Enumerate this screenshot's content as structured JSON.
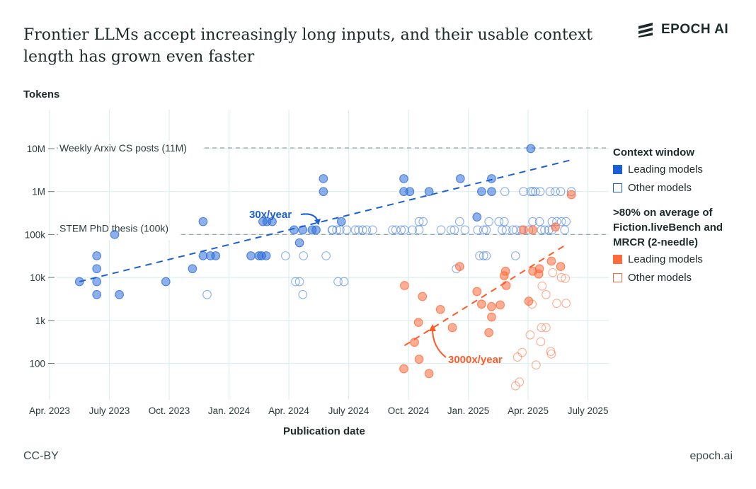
{
  "title": "Frontier LLMs accept increasingly long inputs, and their usable context length has grown even faster",
  "logo": {
    "text": "EPOCH AI"
  },
  "footer": {
    "license": "CC-BY",
    "site": "epoch.ai"
  },
  "colors": {
    "blue": "#2f6fd8",
    "orange": "#ff6b3d",
    "grid": "#dcefee",
    "ref": "#9aa6a6"
  },
  "legend": {
    "group1_title": "Context window",
    "group1_leading": "Leading models",
    "group1_other": "Other models",
    "group2_title_1": ">80% on average of",
    "group2_title_2": "Fiction.liveBench and",
    "group2_title_3": "MRCR (2-needle)",
    "group2_leading": "Leading models",
    "group2_other": "Other models"
  },
  "chart_data": {
    "type": "scatter",
    "xlabel": "Publication date",
    "ylabel": "Tokens",
    "yscale": "log",
    "ylim": [
      20,
      20000000
    ],
    "xlim": [
      "2023-03-18",
      "2025-07-30"
    ],
    "grid": true,
    "legend_position": "right",
    "x_ticks": [
      {
        "date": "2023-04-01",
        "label": "Apr. 2023"
      },
      {
        "date": "2023-07-01",
        "label": "July 2023"
      },
      {
        "date": "2023-10-01",
        "label": "Oct. 2023"
      },
      {
        "date": "2024-01-01",
        "label": "Jan. 2024"
      },
      {
        "date": "2024-04-01",
        "label": "Apr. 2024"
      },
      {
        "date": "2024-07-01",
        "label": "July 2024"
      },
      {
        "date": "2024-10-01",
        "label": "Oct. 2024"
      },
      {
        "date": "2025-01-01",
        "label": "Jan. 2025"
      },
      {
        "date": "2025-04-01",
        "label": "Apr. 2025"
      },
      {
        "date": "2025-07-01",
        "label": "July 2025"
      }
    ],
    "y_ticks": [
      {
        "value": 100,
        "label": "100"
      },
      {
        "value": 1000,
        "label": "1k"
      },
      {
        "value": 10000,
        "label": "10k"
      },
      {
        "value": 100000,
        "label": "100k"
      },
      {
        "value": 1000000,
        "label": "1M"
      },
      {
        "value": 10000000,
        "label": "10M"
      }
    ],
    "reference_lines": [
      {
        "value": 11000000,
        "label": "Weekly Arxiv CS posts (11M)"
      },
      {
        "value": 100000,
        "label": "STEM PhD thesis (100k)"
      }
    ],
    "trends": [
      {
        "label": "30x/year",
        "color": "blue",
        "from": [
          "2023-05-16",
          8000
        ],
        "to": [
          "2025-06-07",
          5500000
        ]
      },
      {
        "label": "3000x/year",
        "color": "orange",
        "from": [
          "2024-09-25",
          260
        ],
        "to": [
          "2025-05-28",
          58000
        ]
      }
    ],
    "series": [
      {
        "name": "Context window – Leading models",
        "color": "blue",
        "filled": true,
        "points": [
          [
            "2023-05-16",
            8000
          ],
          [
            "2023-06-12",
            32000
          ],
          [
            "2023-06-12",
            16000
          ],
          [
            "2023-06-12",
            8000
          ],
          [
            "2023-06-12",
            4000
          ],
          [
            "2023-07-09",
            100000
          ],
          [
            "2023-07-16",
            4000
          ],
          [
            "2023-09-26",
            8000
          ],
          [
            "2023-11-06",
            16000
          ],
          [
            "2023-11-22",
            200000
          ],
          [
            "2023-11-22",
            32000
          ],
          [
            "2023-12-03",
            32000
          ],
          [
            "2023-12-11",
            32000
          ],
          [
            "2024-02-04",
            32000
          ],
          [
            "2024-02-16",
            32000
          ],
          [
            "2024-02-20",
            32000
          ],
          [
            "2024-02-27",
            32000
          ],
          [
            "2024-02-22",
            200000
          ],
          [
            "2024-02-28",
            200000
          ],
          [
            "2024-03-06",
            200000
          ],
          [
            "2024-04-09",
            128000
          ],
          [
            "2024-04-17",
            64000
          ],
          [
            "2024-04-22",
            128000
          ],
          [
            "2024-05-06",
            128000
          ],
          [
            "2024-05-12",
            128000
          ],
          [
            "2024-05-23",
            2000000
          ],
          [
            "2024-05-23",
            1000000
          ],
          [
            "2024-06-20",
            200000
          ],
          [
            "2024-09-24",
            2000000
          ],
          [
            "2024-09-24",
            1000000
          ],
          [
            "2024-10-03",
            1000000
          ],
          [
            "2024-11-02",
            1000000
          ],
          [
            "2024-12-19",
            2000000
          ],
          [
            "2025-01-14",
            256000
          ],
          [
            "2025-01-21",
            1000000
          ],
          [
            "2025-02-06",
            1000000
          ],
          [
            "2025-02-06",
            2000000
          ],
          [
            "2025-04-05",
            10000000
          ]
        ]
      },
      {
        "name": "Context window – Other models",
        "color": "blue",
        "filled": false,
        "points": [
          [
            "2023-11-28",
            4000
          ],
          [
            "2024-03-26",
            32000
          ],
          [
            "2024-04-23",
            32000
          ],
          [
            "2024-05-27",
            32000
          ],
          [
            "2024-04-11",
            8000
          ],
          [
            "2024-04-17",
            8000
          ],
          [
            "2024-04-22",
            4000
          ],
          [
            "2024-06-06",
            128000
          ],
          [
            "2024-06-13",
            128000
          ],
          [
            "2024-06-15",
            8000
          ],
          [
            "2024-06-24",
            8000
          ],
          [
            "2024-06-07",
            128000
          ],
          [
            "2024-06-18",
            128000
          ],
          [
            "2024-06-28",
            128000
          ],
          [
            "2024-07-11",
            128000
          ],
          [
            "2024-07-16",
            128000
          ],
          [
            "2024-07-22",
            128000
          ],
          [
            "2024-07-28",
            128000
          ],
          [
            "2024-08-07",
            128000
          ],
          [
            "2024-09-07",
            128000
          ],
          [
            "2024-09-12",
            128000
          ],
          [
            "2024-09-20",
            128000
          ],
          [
            "2024-09-25",
            128000
          ],
          [
            "2024-10-07",
            128000
          ],
          [
            "2024-10-17",
            128000
          ],
          [
            "2024-11-20",
            128000
          ],
          [
            "2024-12-05",
            128000
          ],
          [
            "2024-12-10",
            128000
          ],
          [
            "2024-12-26",
            128000
          ],
          [
            "2025-01-15",
            128000
          ],
          [
            "2025-01-24",
            128000
          ],
          [
            "2025-01-28",
            128000
          ],
          [
            "2025-02-22",
            128000
          ],
          [
            "2025-02-28",
            128000
          ],
          [
            "2025-03-08",
            128000
          ],
          [
            "2025-03-13",
            128000
          ],
          [
            "2025-03-21",
            128000
          ],
          [
            "2025-04-02",
            128000
          ],
          [
            "2025-04-21",
            128000
          ],
          [
            "2025-04-26",
            128000
          ],
          [
            "2025-05-02",
            128000
          ],
          [
            "2025-05-07",
            128000
          ],
          [
            "2025-05-26",
            128000
          ],
          [
            "2024-10-17",
            200000
          ],
          [
            "2024-10-23",
            200000
          ],
          [
            "2024-12-18",
            200000
          ],
          [
            "2025-02-02",
            200000
          ],
          [
            "2025-02-17",
            200000
          ],
          [
            "2025-02-25",
            200000
          ],
          [
            "2025-04-08",
            200000
          ],
          [
            "2025-04-18",
            200000
          ],
          [
            "2025-05-07",
            200000
          ],
          [
            "2025-05-14",
            200000
          ],
          [
            "2025-05-21",
            200000
          ],
          [
            "2025-05-28",
            200000
          ],
          [
            "2025-02-26",
            1000000
          ],
          [
            "2025-03-24",
            1000000
          ],
          [
            "2025-04-05",
            1000000
          ],
          [
            "2025-04-08",
            1000000
          ],
          [
            "2025-04-12",
            1000000
          ],
          [
            "2025-04-19",
            1000000
          ],
          [
            "2025-05-04",
            1000000
          ],
          [
            "2025-05-12",
            1000000
          ],
          [
            "2025-05-20",
            1000000
          ],
          [
            "2025-06-06",
            1000000
          ],
          [
            "2025-01-18",
            32000
          ],
          [
            "2025-01-24",
            32000
          ],
          [
            "2025-01-28",
            32000
          ],
          [
            "2025-03-12",
            32000
          ],
          [
            "2024-12-13",
            16000
          ]
        ]
      },
      {
        "name": ">80% on Fiction.liveBench and MRCR – Leading models",
        "color": "orange",
        "filled": true,
        "points": [
          [
            "2024-12-18",
            18000
          ],
          [
            "2024-09-25",
            6500
          ],
          [
            "2024-10-22",
            3600
          ],
          [
            "2024-11-19",
            1800
          ],
          [
            "2024-10-16",
            900
          ],
          [
            "2024-12-07",
            680
          ],
          [
            "2024-10-10",
            310
          ],
          [
            "2024-10-17",
            125
          ],
          [
            "2024-09-24",
            75
          ],
          [
            "2024-11-02",
            58
          ],
          [
            "2025-01-14",
            4700
          ],
          [
            "2025-01-21",
            2400
          ],
          [
            "2025-02-06",
            2100
          ],
          [
            "2025-02-19",
            2300
          ],
          [
            "2025-02-06",
            1200
          ],
          [
            "2025-02-02",
            520
          ],
          [
            "2025-02-27",
            14000
          ],
          [
            "2025-02-25",
            11000
          ],
          [
            "2025-02-28",
            6500
          ],
          [
            "2025-04-02",
            2800
          ],
          [
            "2025-04-08",
            14000
          ],
          [
            "2025-04-18",
            16000
          ],
          [
            "2025-04-17",
            12000
          ],
          [
            "2025-05-06",
            24000
          ],
          [
            "2025-05-20",
            18000
          ],
          [
            "2025-03-24",
            128000
          ],
          [
            "2025-04-08",
            128000
          ],
          [
            "2025-05-12",
            150000
          ],
          [
            "2025-06-06",
            850000
          ]
        ]
      },
      {
        "name": ">80% on Fiction.liveBench and MRCR – Other models",
        "color": "orange",
        "filled": false,
        "points": [
          [
            "2025-05-08",
            13000
          ],
          [
            "2025-05-21",
            10000
          ],
          [
            "2025-05-27",
            9500
          ],
          [
            "2025-04-22",
            6300
          ],
          [
            "2025-04-28",
            4000
          ],
          [
            "2025-04-07",
            2400
          ],
          [
            "2025-05-14",
            2500
          ],
          [
            "2025-05-28",
            2500
          ],
          [
            "2025-04-21",
            680
          ],
          [
            "2025-04-28",
            680
          ],
          [
            "2025-04-04",
            460
          ],
          [
            "2025-04-20",
            320
          ],
          [
            "2025-05-05",
            190
          ],
          [
            "2025-05-06",
            165
          ],
          [
            "2025-04-13",
            92
          ],
          [
            "2025-03-22",
            180
          ],
          [
            "2025-03-15",
            140
          ],
          [
            "2025-03-18",
            37
          ],
          [
            "2025-03-12",
            30
          ]
        ]
      }
    ]
  }
}
